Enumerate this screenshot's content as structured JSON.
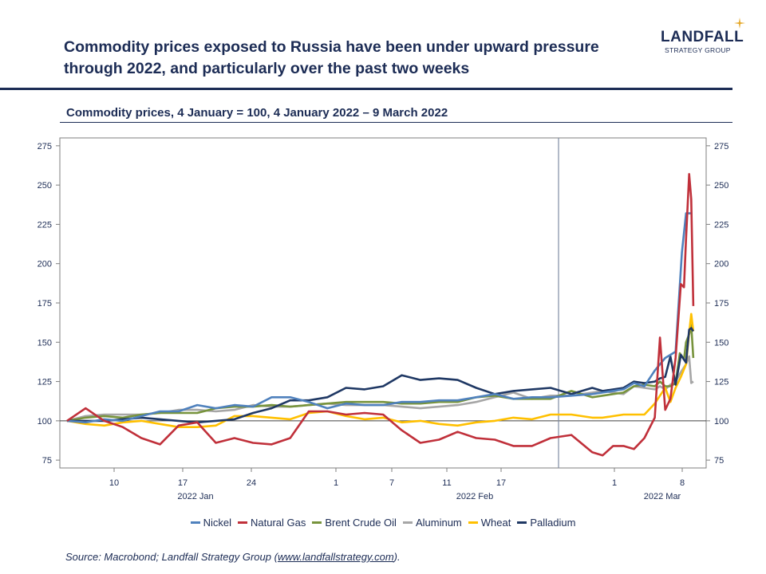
{
  "header": {
    "title": "Commodity prices exposed to Russia have been under upward pressure through 2022, and particularly over the past two weeks",
    "logo_word": "LANDFALL",
    "logo_sub": "STRATEGY GROUP"
  },
  "chart_data": {
    "type": "line",
    "title": "Commodity prices, 4 January = 100, 4 January 2022 – 9 March 2022",
    "xlabel": "",
    "ylabel": "",
    "ylim": [
      70,
      280
    ],
    "yticks": [
      75,
      100,
      125,
      150,
      175,
      200,
      225,
      250,
      275
    ],
    "grid": false,
    "legend_position": "bottom",
    "reference_line": 100,
    "vertical_marker_date": "2022-02-24",
    "x_start": "2022-01-04",
    "x_end": "2022-03-10",
    "x_tick_labels": [
      {
        "date": "2022-01-10",
        "label": "10"
      },
      {
        "date": "2022-01-17",
        "label": "17"
      },
      {
        "date": "2022-01-24",
        "label": "24"
      },
      {
        "date": "2022-02-01",
        "label": "1"
      },
      {
        "date": "2022-02-07",
        "label": "7"
      },
      {
        "date": "2022-02-11",
        "label": "11"
      },
      {
        "date": "2022-02-17",
        "label": "17"
      },
      {
        "date": "2022-03-01",
        "label": "1"
      },
      {
        "date": "2022-03-08",
        "label": "8"
      }
    ],
    "x_period_labels": [
      {
        "date": "2022-01-17",
        "label": "2022 Jan"
      },
      {
        "date": "2022-02-11",
        "label": "2022 Feb"
      },
      {
        "date": "2022-03-07",
        "label": "2022 Mar"
      }
    ],
    "series": [
      {
        "name": "Nickel",
        "color": "#4f81bd",
        "points": [
          [
            "2022-01-04",
            100
          ],
          [
            "2022-01-06",
            99
          ],
          [
            "2022-01-08",
            101
          ],
          [
            "2022-01-10",
            100
          ],
          [
            "2022-01-12",
            103
          ],
          [
            "2022-01-14",
            106
          ],
          [
            "2022-01-16",
            106
          ],
          [
            "2022-01-18",
            110
          ],
          [
            "2022-01-20",
            108
          ],
          [
            "2022-01-22",
            110
          ],
          [
            "2022-01-24",
            109
          ],
          [
            "2022-01-26",
            115
          ],
          [
            "2022-01-28",
            115
          ],
          [
            "2022-01-30",
            112
          ],
          [
            "2022-02-01",
            108
          ],
          [
            "2022-02-03",
            111
          ],
          [
            "2022-02-05",
            110
          ],
          [
            "2022-02-07",
            110
          ],
          [
            "2022-02-09",
            112
          ],
          [
            "2022-02-11",
            112
          ],
          [
            "2022-02-13",
            113
          ],
          [
            "2022-02-15",
            113
          ],
          [
            "2022-02-17",
            115
          ],
          [
            "2022-02-19",
            117
          ],
          [
            "2022-02-21",
            114
          ],
          [
            "2022-02-23",
            115
          ],
          [
            "2022-02-25",
            115
          ],
          [
            "2022-02-27",
            116
          ],
          [
            "2022-03-01",
            117
          ],
          [
            "2022-03-02",
            118
          ],
          [
            "2022-03-04",
            120
          ],
          [
            "2022-03-05",
            124
          ],
          [
            "2022-03-06",
            122
          ],
          [
            "2022-03-07",
            132
          ],
          [
            "2022-03-08",
            140
          ],
          [
            "2022-03-09",
            144
          ],
          [
            "2022-03-09.6",
            207
          ],
          [
            "2022-03-10",
            232
          ],
          [
            "2022-03-10.5",
            232
          ]
        ]
      },
      {
        "name": "Natural Gas",
        "color": "#c0303a",
        "points": [
          [
            "2022-01-04",
            100
          ],
          [
            "2022-01-06",
            108
          ],
          [
            "2022-01-08",
            100
          ],
          [
            "2022-01-10",
            96
          ],
          [
            "2022-01-12",
            89
          ],
          [
            "2022-01-14",
            85
          ],
          [
            "2022-01-16",
            97
          ],
          [
            "2022-01-18",
            99
          ],
          [
            "2022-01-20",
            86
          ],
          [
            "2022-01-22",
            89
          ],
          [
            "2022-01-24",
            86
          ],
          [
            "2022-01-26",
            85
          ],
          [
            "2022-01-28",
            89
          ],
          [
            "2022-01-30",
            106
          ],
          [
            "2022-02-01",
            106
          ],
          [
            "2022-02-03",
            104
          ],
          [
            "2022-02-05",
            105
          ],
          [
            "2022-02-07",
            104
          ],
          [
            "2022-02-09",
            94
          ],
          [
            "2022-02-11",
            86
          ],
          [
            "2022-02-13",
            88
          ],
          [
            "2022-02-15",
            93
          ],
          [
            "2022-02-17",
            89
          ],
          [
            "2022-02-19",
            88
          ],
          [
            "2022-02-21",
            84
          ],
          [
            "2022-02-23",
            84
          ],
          [
            "2022-02-25",
            89
          ],
          [
            "2022-02-27",
            91
          ],
          [
            "2022-03-01",
            80
          ],
          [
            "2022-03-02",
            78
          ],
          [
            "2022-03-03",
            84
          ],
          [
            "2022-03-04",
            84
          ],
          [
            "2022-03-05",
            82
          ],
          [
            "2022-03-06",
            89
          ],
          [
            "2022-03-07",
            102
          ],
          [
            "2022-03-07.5",
            153
          ],
          [
            "2022-03-08",
            107
          ],
          [
            "2022-03-08.5",
            114
          ],
          [
            "2022-03-09",
            140
          ],
          [
            "2022-03-09.5",
            187
          ],
          [
            "2022-03-09.8",
            185
          ],
          [
            "2022-03-10",
            216
          ],
          [
            "2022-03-10.3",
            257
          ],
          [
            "2022-03-10.5",
            241
          ],
          [
            "2022-03-10.7",
            173
          ]
        ]
      }
    ]
  },
  "legend": [
    {
      "label": "Nickel",
      "color": "#4f81bd"
    },
    {
      "label": "Natural Gas",
      "color": "#c0303a"
    },
    {
      "label": "Brent Crude Oil",
      "color": "#77933c"
    },
    {
      "label": "Aluminum",
      "color": "#a6a6a6"
    },
    {
      "label": "Wheat",
      "color": "#ffc000"
    },
    {
      "label": "Palladium",
      "color": "#1f3864"
    }
  ],
  "source": {
    "prefix": "Source: Macrobond; Landfall Strategy Group (",
    "link": "www.landfallstrategy.com",
    "suffix": ")."
  }
}
